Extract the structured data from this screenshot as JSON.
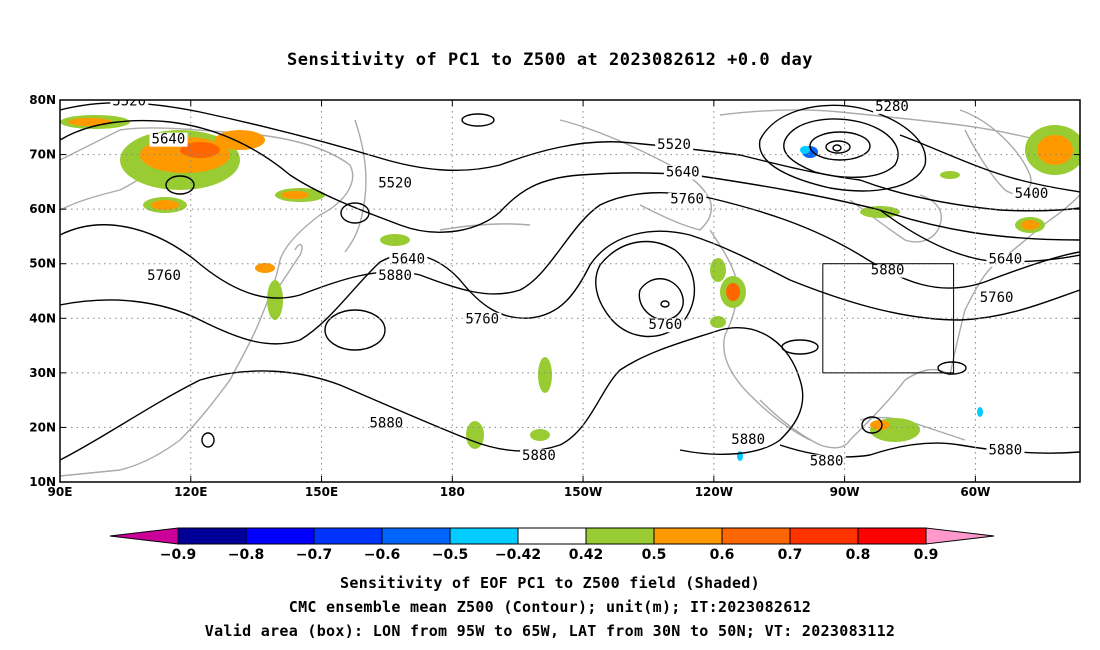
{
  "title": "Sensitivity of PC1 to Z500 at 2023082612 +0.0 day",
  "map": {
    "lon_labels": [
      "90E",
      "120E",
      "150E",
      "180",
      "150W",
      "120W",
      "90W",
      "60W"
    ],
    "lat_labels": [
      "80N",
      "70N",
      "60N",
      "50N",
      "40N",
      "30N",
      "20N",
      "10N"
    ],
    "contour_labels": [
      {
        "text": "5520",
        "lon": 102,
        "lat": 79
      },
      {
        "text": "5640",
        "lon": 111,
        "lat": 72
      },
      {
        "text": "5520",
        "lon": 163,
        "lat": 64
      },
      {
        "text": "5640",
        "lon": 166,
        "lat": 50
      },
      {
        "text": "5760",
        "lon": 110,
        "lat": 47
      },
      {
        "text": "5880",
        "lon": 163,
        "lat": 47
      },
      {
        "text": "5760",
        "lon": 183,
        "lat": 39
      },
      {
        "text": "5880",
        "lon": 161,
        "lat": 20
      },
      {
        "text": "5880",
        "lon": 196,
        "lat": 14
      },
      {
        "text": "5760",
        "lon": 225,
        "lat": 38
      },
      {
        "text": "5520",
        "lon": 227,
        "lat": 71
      },
      {
        "text": "5640",
        "lon": 229,
        "lat": 66
      },
      {
        "text": "5760",
        "lon": 230,
        "lat": 61
      },
      {
        "text": "5880",
        "lon": 276,
        "lat": 48
      },
      {
        "text": "5880",
        "lon": 244,
        "lat": 17
      },
      {
        "text": "5880",
        "lon": 262,
        "lat": 13
      },
      {
        "text": "5280",
        "lon": 277,
        "lat": 78
      },
      {
        "text": "5400",
        "lon": 309,
        "lat": 62
      },
      {
        "text": "5640",
        "lon": 303,
        "lat": 50
      },
      {
        "text": "5760",
        "lon": 301,
        "lat": 43
      },
      {
        "text": "5880",
        "lon": 303,
        "lat": 15
      }
    ],
    "valid_box": {
      "lon_from": -95,
      "lon_to": -65,
      "lat_from": 30,
      "lat_to": 50
    }
  },
  "colorbar": {
    "labels": [
      "−0.9",
      "−0.8",
      "−0.7",
      "−0.6",
      "−0.5",
      "−0.42",
      "0.42",
      "0.5",
      "0.6",
      "0.7",
      "0.8",
      "0.9"
    ],
    "colors": [
      "#000099",
      "#0000ff",
      "#0033ff",
      "#0066ff",
      "#00ccff",
      "#ffffff",
      "#99cc33",
      "#ff9900",
      "#ff6600",
      "#ff3300",
      "#ff0000"
    ],
    "low_end_color": "#cc0099",
    "high_end_color": "#ff99cc"
  },
  "captions": [
    "Sensitivity of EOF PC1 to Z500 field (Shaded)",
    "CMC ensemble mean Z500 (Contour); unit(m); IT:2023082612",
    "Valid area (box): LON from 95W to 65W, LAT from 30N to 50N; VT: 2023083112"
  ]
}
